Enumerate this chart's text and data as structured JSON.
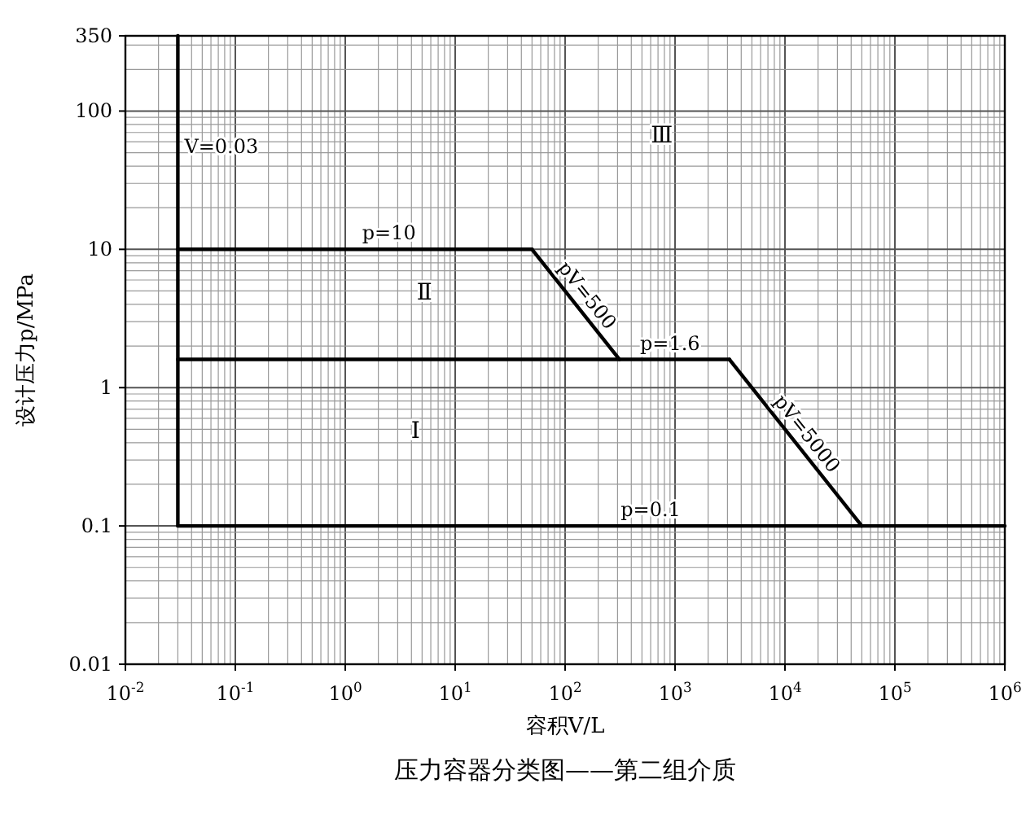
{
  "chart_data": {
    "type": "line",
    "title": "压力容器分类图——第二组介质",
    "xlabel": "容积V/L",
    "ylabel": "设计压力p/MPa",
    "log": "xy",
    "grid": true,
    "marker": "none",
    "line_style": "solid",
    "xlim": [
      0.01,
      1000000
    ],
    "ylim": [
      0.01,
      350
    ],
    "xticks": [
      {
        "value": 0.01,
        "label": "10$^{-2}$"
      },
      {
        "value": 0.1,
        "label": "10$^{-1}$"
      },
      {
        "value": 1,
        "label": "10$^{0}$"
      },
      {
        "value": 10,
        "label": "10$^{1}$"
      },
      {
        "value": 100,
        "label": "10$^{2}$"
      },
      {
        "value": 1000,
        "label": "10$^{3}$"
      },
      {
        "value": 10000,
        "label": "10$^{4}$"
      },
      {
        "value": 100000,
        "label": "10$^{5}$"
      },
      {
        "value": 1000000,
        "label": "10$^{6}$"
      }
    ],
    "yticks": [
      0.01,
      0.1,
      1,
      10,
      100,
      350
    ],
    "series": [
      {
        "color": "#000000",
        "x": [
          0.03,
          0.03
        ],
        "values": [
          0.1,
          350
        ]
      },
      {
        "color": "#000000",
        "x": [
          0.03,
          50
        ],
        "values": [
          10,
          10
        ]
      },
      {
        "color": "#000000",
        "x": [
          50,
          312.5
        ],
        "values": [
          10,
          1.6
        ]
      },
      {
        "color": "#000000",
        "x": [
          0.03,
          3125
        ],
        "values": [
          1.6,
          1.6
        ]
      },
      {
        "color": "#000000",
        "x": [
          3125,
          50000
        ],
        "values": [
          1.6,
          0.1
        ]
      },
      {
        "color": "#000000",
        "x": [
          0.03,
          1000000
        ],
        "values": [
          0.1,
          0.1
        ]
      }
    ],
    "annotations": [
      {
        "text": "V=0.03",
        "x": 0.03,
        "y": 50
      },
      {
        "text": "p=10",
        "x": 2.5,
        "y": 10
      },
      {
        "text": "pV=500",
        "x": 125,
        "y": 4
      },
      {
        "text": "p=1.6",
        "x": 900,
        "y": 1.6
      },
      {
        "text": "pV=5000",
        "x": 12500,
        "y": 0.4
      },
      {
        "text": "p=0.1",
        "x": 600,
        "y": 0.1
      },
      "Ⅰ",
      "Ⅱ",
      "Ⅲ"
    ]
  }
}
